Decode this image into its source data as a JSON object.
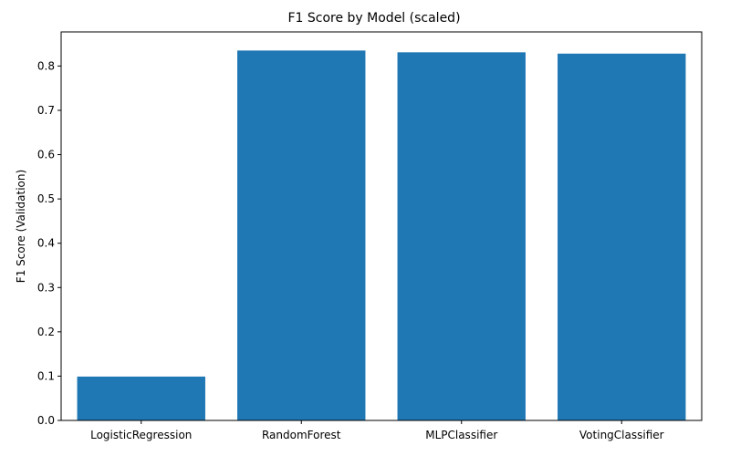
{
  "chart_data": {
    "type": "bar",
    "title": "F1 Score by Model (scaled)",
    "xlabel": "",
    "ylabel": "F1 Score (Validation)",
    "categories": [
      "LogisticRegression",
      "RandomForest",
      "MLPClassifier",
      "VotingClassifier"
    ],
    "values": [
      0.099,
      0.835,
      0.831,
      0.828
    ],
    "ylim": [
      0,
      0.877
    ],
    "yticks": [
      0.0,
      0.1,
      0.2,
      0.3,
      0.4,
      0.5,
      0.6,
      0.7,
      0.8
    ],
    "ytick_labels": [
      "0.0",
      "0.1",
      "0.2",
      "0.3",
      "0.4",
      "0.5",
      "0.6",
      "0.7",
      "0.8"
    ],
    "grid": false,
    "bar_color": "#1f77b4"
  }
}
